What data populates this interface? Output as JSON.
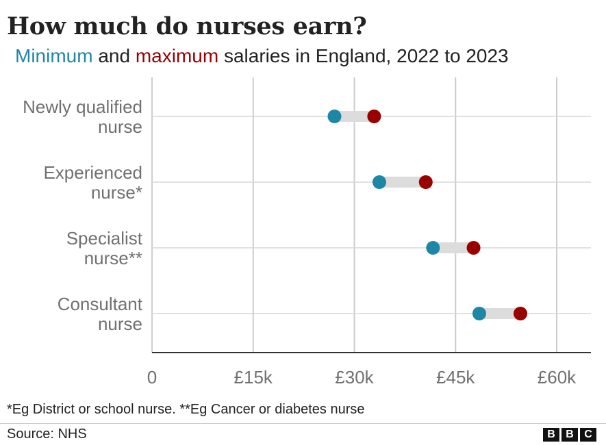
{
  "title": "How much do nurses earn?",
  "subtitle": {
    "min_word": "Minimum",
    "and_word": "and",
    "max_word": "maximum",
    "rest": "salaries in England, 2022 to 2023"
  },
  "colors": {
    "min": "#1f87a6",
    "max": "#990000",
    "connector": "#dcdcdc",
    "grid": "#cccccc",
    "axis": "#333333",
    "label": "#707070"
  },
  "chart_data": {
    "type": "dumbbell",
    "title": "How much do nurses earn?",
    "subtitle": "Minimum and maximum salaries in England, 2022 to 2023",
    "categories": [
      [
        "Newly qualified",
        "nurse"
      ],
      [
        "Experienced",
        "nurse*"
      ],
      [
        "Specialist",
        "nurse**"
      ],
      [
        "Consultant",
        "nurse"
      ]
    ],
    "series": [
      {
        "name": "Minimum",
        "values": [
          27055,
          33706,
          41659,
          48526
        ]
      },
      {
        "name": "Maximum",
        "values": [
          32934,
          40588,
          47672,
          54619
        ]
      }
    ],
    "xlim": [
      0,
      65000
    ],
    "xticks": [
      0,
      15000,
      30000,
      45000,
      60000
    ],
    "xtick_labels": [
      "0",
      "£15k",
      "£30k",
      "£45k",
      "£60k"
    ],
    "grid": true,
    "xlabel": "",
    "ylabel": ""
  },
  "footnote": "*Eg District or school nurse. **Eg Cancer or diabetes nurse",
  "source": "Source: NHS",
  "logo": [
    "B",
    "B",
    "C"
  ]
}
